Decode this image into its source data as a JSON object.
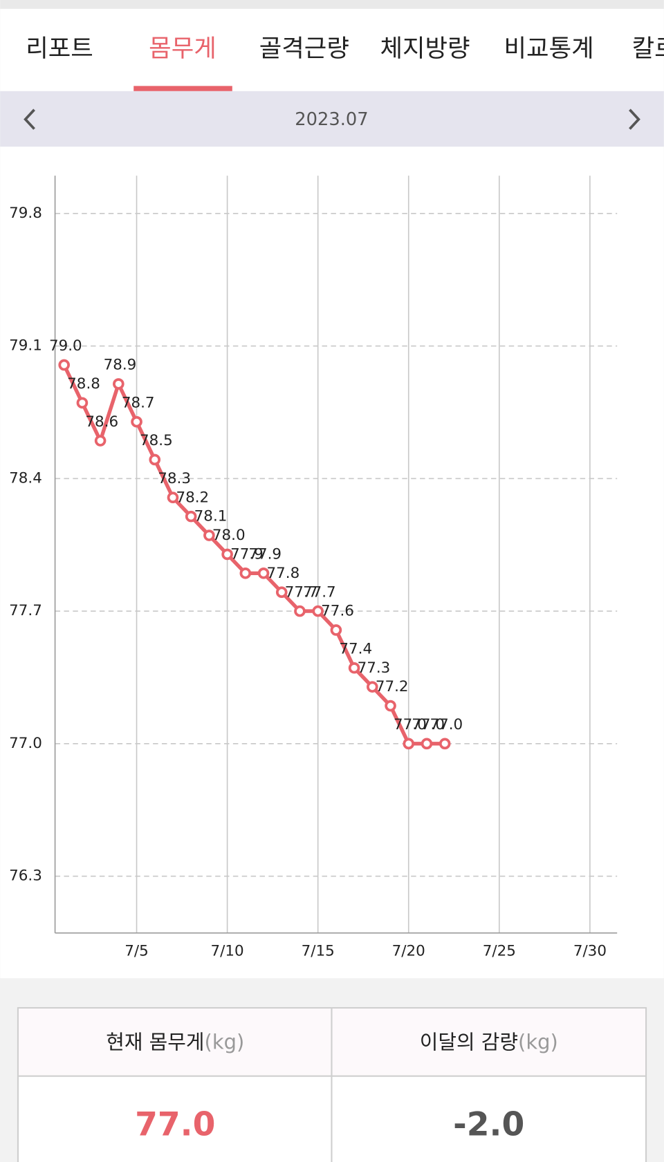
{
  "tabs": [
    "리포트",
    "몸무게",
    "골격근량",
    "체지방량",
    "비교통계",
    "칼로"
  ],
  "active_tab": 1,
  "period": "2023.07",
  "chart_data": {
    "type": "line",
    "x": [
      1,
      2,
      3,
      4,
      5,
      6,
      7,
      8,
      9,
      10,
      11,
      12,
      13,
      14,
      15,
      16,
      17,
      18,
      19,
      20,
      21,
      22
    ],
    "values": [
      79.0,
      78.8,
      78.6,
      78.9,
      78.7,
      78.5,
      78.3,
      78.2,
      78.1,
      78.0,
      77.9,
      77.9,
      77.8,
      77.7,
      77.7,
      77.6,
      77.4,
      77.3,
      77.2,
      77.0,
      77.0,
      77.0
    ],
    "value_labels": [
      "79.0",
      "78.8",
      "78.6",
      "78.9",
      "78.7",
      "78.5",
      "78.3",
      "78.2",
      "78.1",
      "78.0",
      "77.9",
      "77.9",
      "77.8",
      "77.7",
      "77.7",
      "77.6",
      "77.4",
      "77.3",
      "77.2",
      "77.0",
      "77.0",
      "77.0"
    ],
    "color": "#e8636b",
    "xlim": [
      0.5,
      31.5
    ],
    "xticks": [
      {
        "value": 5,
        "label": "7/5"
      },
      {
        "value": 10,
        "label": "7/10"
      },
      {
        "value": 15,
        "label": "7/15"
      },
      {
        "value": 20,
        "label": "7/20"
      },
      {
        "value": 25,
        "label": "7/25"
      },
      {
        "value": 30,
        "label": "7/30"
      }
    ],
    "ylim": [
      76,
      80
    ],
    "yticks": [
      79.8,
      79.1,
      78.4,
      77.7,
      {
        "value": 77,
        "label": "77.0"
      },
      76.3
    ],
    "grid": true
  },
  "summary": {
    "headers": [
      {
        "label": "현재 몸무게",
        "unit": "(kg)"
      },
      {
        "label": "이달의 감량",
        "unit": "(kg)"
      }
    ],
    "values": [
      "77.0",
      "-2.0"
    ]
  }
}
